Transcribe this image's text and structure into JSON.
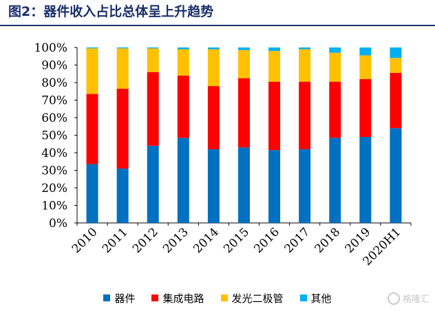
{
  "figure": {
    "title": "图2：器件收入占比总体呈上升趋势",
    "watermark_text": "格隆汇"
  },
  "colors": {
    "title": "#1a2f6b",
    "series": [
      "#0070c0",
      "#ff0000",
      "#ffc000",
      "#00b0f0"
    ]
  },
  "chart_data": {
    "type": "bar",
    "stacked": true,
    "percent": true,
    "title": "",
    "xlabel": "",
    "ylabel": "",
    "ylim": [
      0,
      100
    ],
    "yticks": [
      "0%",
      "10%",
      "20%",
      "30%",
      "40%",
      "50%",
      "60%",
      "70%",
      "80%",
      "90%",
      "100%"
    ],
    "categories": [
      "2010",
      "2011",
      "2012",
      "2013",
      "2014",
      "2015",
      "2016",
      "2017",
      "2018",
      "2019",
      "2020H1"
    ],
    "series": [
      {
        "name": "器件",
        "values": [
          33.5,
          31,
          44,
          48.5,
          42,
          43,
          41.5,
          42,
          48.5,
          49,
          54
        ]
      },
      {
        "name": "集成电路",
        "values": [
          40,
          45.5,
          42,
          35.5,
          36,
          39.5,
          39,
          38.5,
          32,
          33,
          31.5
        ]
      },
      {
        "name": "发光二极管",
        "values": [
          26,
          23,
          13.5,
          15,
          21,
          16,
          17.5,
          18.5,
          16.5,
          13.5,
          8.5
        ]
      },
      {
        "name": "其他",
        "values": [
          0.5,
          0.5,
          0.5,
          1,
          1,
          1.5,
          2,
          1,
          3,
          4.5,
          6
        ]
      }
    ],
    "legend_position": "bottom",
    "grid": false
  }
}
